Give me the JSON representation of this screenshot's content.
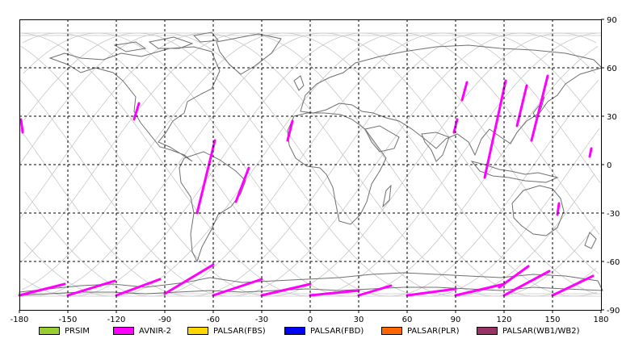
{
  "map": {
    "lon_ticks": [
      "-180",
      "-150",
      "-120",
      "-90",
      "-60",
      "-30",
      "0",
      "30",
      "60",
      "90",
      "120",
      "150",
      "180"
    ],
    "lat_ticks": [
      "90",
      "60",
      "30",
      "0",
      "-30",
      "-60",
      "-90"
    ],
    "gridlines": "dashed",
    "extent": {
      "lon": [
        -180,
        180
      ],
      "lat": [
        -90,
        90
      ]
    }
  },
  "legend": [
    {
      "label": "PRSIM",
      "color": "#9acd32"
    },
    {
      "label": "AVNIR-2",
      "color": "#ff00ff"
    },
    {
      "label": "PALSAR(FBS)",
      "color": "#ffd700"
    },
    {
      "label": "PALSAR(FBD)",
      "color": "#0000ff"
    },
    {
      "label": "PALSAR(PLR)",
      "color": "#ff6600"
    },
    {
      "label": "PALSAR(WB1/WB2)",
      "color": "#993366"
    }
  ],
  "colors": {
    "orbit_track": "#c8c8c8",
    "coastline": "#707070",
    "avnir_swath": "#ff00ff"
  },
  "avnir_segments": [
    {
      "lon": [
        -179,
        -178
      ],
      "lat": [
        28,
        20
      ]
    },
    {
      "lon": [
        -106,
        -109
      ],
      "lat": [
        38,
        28
      ]
    },
    {
      "lon": [
        -59,
        -70
      ],
      "lat": [
        15,
        -30
      ]
    },
    {
      "lon": [
        -38,
        -46
      ],
      "lat": [
        -2,
        -23
      ]
    },
    {
      "lon": [
        -11,
        -14
      ],
      "lat": [
        27,
        15
      ]
    },
    {
      "lon": [
        97,
        94
      ],
      "lat": [
        51,
        40
      ]
    },
    {
      "lon": [
        91,
        89
      ],
      "lat": [
        28,
        20
      ]
    },
    {
      "lon": [
        121,
        108
      ],
      "lat": [
        52,
        -8
      ]
    },
    {
      "lon": [
        134,
        128
      ],
      "lat": [
        49,
        24
      ]
    },
    {
      "lon": [
        147,
        137
      ],
      "lat": [
        55,
        15
      ]
    },
    {
      "lon": [
        154,
        153
      ],
      "lat": [
        -24,
        -31
      ]
    },
    {
      "lon": [
        174,
        173
      ],
      "lat": [
        10,
        5
      ]
    },
    {
      "lon": [
        -180,
        -152
      ],
      "lat": [
        -81,
        -74
      ]
    },
    {
      "lon": [
        -150,
        -121
      ],
      "lat": [
        -81,
        -72
      ]
    },
    {
      "lon": [
        -120,
        -93
      ],
      "lat": [
        -81,
        -71
      ]
    },
    {
      "lon": [
        -90,
        -60
      ],
      "lat": [
        -80,
        -62
      ]
    },
    {
      "lon": [
        -60,
        -30
      ],
      "lat": [
        -81,
        -71
      ]
    },
    {
      "lon": [
        -30,
        0
      ],
      "lat": [
        -81,
        -74
      ]
    },
    {
      "lon": [
        0,
        30
      ],
      "lat": [
        -81,
        -78
      ]
    },
    {
      "lon": [
        30,
        50
      ],
      "lat": [
        -81,
        -75
      ]
    },
    {
      "lon": [
        60,
        90
      ],
      "lat": [
        -81,
        -77
      ]
    },
    {
      "lon": [
        90,
        120
      ],
      "lat": [
        -81,
        -74
      ]
    },
    {
      "lon": [
        117,
        135
      ],
      "lat": [
        -76,
        -63
      ]
    },
    {
      "lon": [
        120,
        148
      ],
      "lat": [
        -81,
        -66
      ]
    },
    {
      "lon": [
        150,
        175
      ],
      "lat": [
        -81,
        -69
      ]
    }
  ]
}
